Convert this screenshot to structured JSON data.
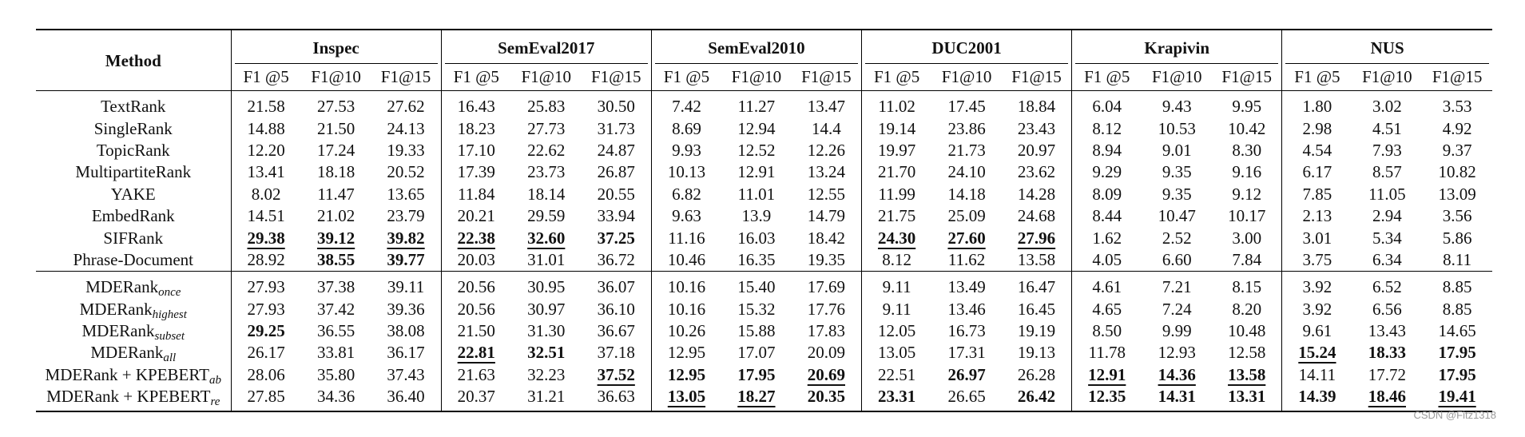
{
  "table": {
    "method_header": "Method",
    "datasets": [
      "Inspec",
      "SemEval2017",
      "SemEval2010",
      "DUC2001",
      "Krapivin",
      "NUS"
    ],
    "metrics": [
      "F1 @5",
      "F1@10",
      "F1@15"
    ],
    "sections": [
      [
        {
          "name": "TextRank",
          "sub": "",
          "cells": [
            {
              "v": "21.58"
            },
            {
              "v": "27.53"
            },
            {
              "v": "27.62"
            },
            {
              "v": "16.43"
            },
            {
              "v": "25.83"
            },
            {
              "v": "30.50"
            },
            {
              "v": "7.42"
            },
            {
              "v": "11.27"
            },
            {
              "v": "13.47"
            },
            {
              "v": "11.02"
            },
            {
              "v": "17.45"
            },
            {
              "v": "18.84"
            },
            {
              "v": "6.04"
            },
            {
              "v": "9.43"
            },
            {
              "v": "9.95"
            },
            {
              "v": "1.80"
            },
            {
              "v": "3.02"
            },
            {
              "v": "3.53"
            }
          ]
        },
        {
          "name": "SingleRank",
          "sub": "",
          "cells": [
            {
              "v": "14.88"
            },
            {
              "v": "21.50"
            },
            {
              "v": "24.13"
            },
            {
              "v": "18.23"
            },
            {
              "v": "27.73"
            },
            {
              "v": "31.73"
            },
            {
              "v": "8.69"
            },
            {
              "v": "12.94"
            },
            {
              "v": "14.4"
            },
            {
              "v": "19.14"
            },
            {
              "v": "23.86"
            },
            {
              "v": "23.43"
            },
            {
              "v": "8.12"
            },
            {
              "v": "10.53"
            },
            {
              "v": "10.42"
            },
            {
              "v": "2.98"
            },
            {
              "v": "4.51"
            },
            {
              "v": "4.92"
            }
          ]
        },
        {
          "name": "TopicRank",
          "sub": "",
          "cells": [
            {
              "v": "12.20"
            },
            {
              "v": "17.24"
            },
            {
              "v": "19.33"
            },
            {
              "v": "17.10"
            },
            {
              "v": "22.62"
            },
            {
              "v": "24.87"
            },
            {
              "v": "9.93"
            },
            {
              "v": "12.52"
            },
            {
              "v": "12.26"
            },
            {
              "v": "19.97"
            },
            {
              "v": "21.73"
            },
            {
              "v": "20.97"
            },
            {
              "v": "8.94"
            },
            {
              "v": "9.01"
            },
            {
              "v": "8.30"
            },
            {
              "v": "4.54"
            },
            {
              "v": "7.93"
            },
            {
              "v": "9.37"
            }
          ]
        },
        {
          "name": "MultipartiteRank",
          "sub": "",
          "cells": [
            {
              "v": "13.41"
            },
            {
              "v": "18.18"
            },
            {
              "v": "20.52"
            },
            {
              "v": "17.39"
            },
            {
              "v": "23.73"
            },
            {
              "v": "26.87"
            },
            {
              "v": "10.13"
            },
            {
              "v": "12.91"
            },
            {
              "v": "13.24"
            },
            {
              "v": "21.70"
            },
            {
              "v": "24.10"
            },
            {
              "v": "23.62"
            },
            {
              "v": "9.29"
            },
            {
              "v": "9.35"
            },
            {
              "v": "9.16"
            },
            {
              "v": "6.17"
            },
            {
              "v": "8.57"
            },
            {
              "v": "10.82"
            }
          ]
        },
        {
          "name": "YAKE",
          "sub": "",
          "cells": [
            {
              "v": "8.02"
            },
            {
              "v": "11.47"
            },
            {
              "v": "13.65"
            },
            {
              "v": "11.84"
            },
            {
              "v": "18.14"
            },
            {
              "v": "20.55"
            },
            {
              "v": "6.82"
            },
            {
              "v": "11.01"
            },
            {
              "v": "12.55"
            },
            {
              "v": "11.99"
            },
            {
              "v": "14.18"
            },
            {
              "v": "14.28"
            },
            {
              "v": "8.09"
            },
            {
              "v": "9.35"
            },
            {
              "v": "9.12"
            },
            {
              "v": "7.85"
            },
            {
              "v": "11.05"
            },
            {
              "v": "13.09"
            }
          ]
        },
        {
          "name": "EmbedRank",
          "sub": "",
          "cells": [
            {
              "v": "14.51"
            },
            {
              "v": "21.02"
            },
            {
              "v": "23.79"
            },
            {
              "v": "20.21"
            },
            {
              "v": "29.59"
            },
            {
              "v": "33.94"
            },
            {
              "v": "9.63"
            },
            {
              "v": "13.9"
            },
            {
              "v": "14.79"
            },
            {
              "v": "21.75"
            },
            {
              "v": "25.09"
            },
            {
              "v": "24.68"
            },
            {
              "v": "8.44"
            },
            {
              "v": "10.47"
            },
            {
              "v": "10.17"
            },
            {
              "v": "2.13"
            },
            {
              "v": "2.94"
            },
            {
              "v": "3.56"
            }
          ]
        },
        {
          "name": "SIFRank",
          "sub": "",
          "cells": [
            {
              "v": "29.38",
              "b": true,
              "u": true
            },
            {
              "v": "39.12",
              "b": true,
              "u": true
            },
            {
              "v": "39.82",
              "b": true,
              "u": true
            },
            {
              "v": "22.38",
              "b": true,
              "u": true
            },
            {
              "v": "32.60",
              "b": true,
              "u": true
            },
            {
              "v": "37.25",
              "b": true
            },
            {
              "v": "11.16"
            },
            {
              "v": "16.03"
            },
            {
              "v": "18.42"
            },
            {
              "v": "24.30",
              "b": true,
              "u": true
            },
            {
              "v": "27.60",
              "b": true,
              "u": true
            },
            {
              "v": "27.96",
              "b": true,
              "u": true
            },
            {
              "v": "1.62"
            },
            {
              "v": "2.52"
            },
            {
              "v": "3.00"
            },
            {
              "v": "3.01"
            },
            {
              "v": "5.34"
            },
            {
              "v": "5.86"
            }
          ]
        },
        {
          "name": "Phrase-Document",
          "sub": "",
          "cells": [
            {
              "v": "28.92"
            },
            {
              "v": "38.55",
              "b": true
            },
            {
              "v": "39.77",
              "b": true
            },
            {
              "v": "20.03"
            },
            {
              "v": "31.01"
            },
            {
              "v": "36.72"
            },
            {
              "v": "10.46"
            },
            {
              "v": "16.35"
            },
            {
              "v": "19.35"
            },
            {
              "v": "8.12"
            },
            {
              "v": "11.62"
            },
            {
              "v": "13.58"
            },
            {
              "v": "4.05"
            },
            {
              "v": "6.60"
            },
            {
              "v": "7.84"
            },
            {
              "v": "3.75"
            },
            {
              "v": "6.34"
            },
            {
              "v": "8.11"
            }
          ]
        }
      ],
      [
        {
          "name": "MDERank",
          "sub": "once",
          "cells": [
            {
              "v": "27.93"
            },
            {
              "v": "37.38"
            },
            {
              "v": "39.11"
            },
            {
              "v": "20.56"
            },
            {
              "v": "30.95"
            },
            {
              "v": "36.07"
            },
            {
              "v": "10.16"
            },
            {
              "v": "15.40"
            },
            {
              "v": "17.69"
            },
            {
              "v": "9.11"
            },
            {
              "v": "13.49"
            },
            {
              "v": "16.47"
            },
            {
              "v": "4.61"
            },
            {
              "v": "7.21"
            },
            {
              "v": "8.15"
            },
            {
              "v": "3.92"
            },
            {
              "v": "6.52"
            },
            {
              "v": "8.85"
            }
          ]
        },
        {
          "name": "MDERank",
          "sub": "highest",
          "cells": [
            {
              "v": "27.93"
            },
            {
              "v": "37.42"
            },
            {
              "v": "39.36"
            },
            {
              "v": "20.56"
            },
            {
              "v": "30.97"
            },
            {
              "v": "36.10"
            },
            {
              "v": "10.16"
            },
            {
              "v": "15.32"
            },
            {
              "v": "17.76"
            },
            {
              "v": "9.11"
            },
            {
              "v": "13.46"
            },
            {
              "v": "16.45"
            },
            {
              "v": "4.65"
            },
            {
              "v": "7.24"
            },
            {
              "v": "8.20"
            },
            {
              "v": "3.92"
            },
            {
              "v": "6.56"
            },
            {
              "v": "8.85"
            }
          ]
        },
        {
          "name": "MDERank",
          "sub": "subset",
          "cells": [
            {
              "v": "29.25",
              "b": true
            },
            {
              "v": "36.55"
            },
            {
              "v": "38.08"
            },
            {
              "v": "21.50"
            },
            {
              "v": "31.30"
            },
            {
              "v": "36.67"
            },
            {
              "v": "10.26"
            },
            {
              "v": "15.88"
            },
            {
              "v": "17.83"
            },
            {
              "v": "12.05"
            },
            {
              "v": "16.73"
            },
            {
              "v": "19.19"
            },
            {
              "v": "8.50"
            },
            {
              "v": "9.99"
            },
            {
              "v": "10.48"
            },
            {
              "v": "9.61"
            },
            {
              "v": "13.43"
            },
            {
              "v": "14.65"
            }
          ]
        },
        {
          "name": "MDERank",
          "sub": "all",
          "cells": [
            {
              "v": "26.17"
            },
            {
              "v": "33.81"
            },
            {
              "v": "36.17"
            },
            {
              "v": "22.81",
              "b": true,
              "u": true
            },
            {
              "v": "32.51",
              "b": true
            },
            {
              "v": "37.18"
            },
            {
              "v": "12.95"
            },
            {
              "v": "17.07"
            },
            {
              "v": "20.09"
            },
            {
              "v": "13.05"
            },
            {
              "v": "17.31"
            },
            {
              "v": "19.13"
            },
            {
              "v": "11.78"
            },
            {
              "v": "12.93"
            },
            {
              "v": "12.58"
            },
            {
              "v": "15.24",
              "b": true,
              "u": true
            },
            {
              "v": "18.33",
              "b": true
            },
            {
              "v": "17.95",
              "b": true
            }
          ]
        },
        {
          "name": "MDERank + KPEBERT",
          "sub": "ab",
          "cells": [
            {
              "v": "28.06"
            },
            {
              "v": "35.80"
            },
            {
              "v": "37.43"
            },
            {
              "v": "21.63"
            },
            {
              "v": "32.23"
            },
            {
              "v": "37.52",
              "b": true,
              "u": true
            },
            {
              "v": "12.95",
              "b": true
            },
            {
              "v": "17.95",
              "b": true
            },
            {
              "v": "20.69",
              "b": true,
              "u": true
            },
            {
              "v": "22.51"
            },
            {
              "v": "26.97",
              "b": true
            },
            {
              "v": "26.28"
            },
            {
              "v": "12.91",
              "b": true,
              "u": true
            },
            {
              "v": "14.36",
              "b": true,
              "u": true
            },
            {
              "v": "13.58",
              "b": true,
              "u": true
            },
            {
              "v": "14.11"
            },
            {
              "v": "17.72"
            },
            {
              "v": "17.95",
              "b": true
            }
          ]
        },
        {
          "name": "MDERank + KPEBERT",
          "sub": "re",
          "cells": [
            {
              "v": "27.85"
            },
            {
              "v": "34.36"
            },
            {
              "v": "36.40"
            },
            {
              "v": "20.37"
            },
            {
              "v": "31.21"
            },
            {
              "v": "36.63"
            },
            {
              "v": "13.05",
              "b": true,
              "u": true
            },
            {
              "v": "18.27",
              "b": true,
              "u": true
            },
            {
              "v": "20.35",
              "b": true
            },
            {
              "v": "23.31",
              "b": true
            },
            {
              "v": "26.65"
            },
            {
              "v": "26.42",
              "b": true
            },
            {
              "v": "12.35",
              "b": true
            },
            {
              "v": "14.31",
              "b": true
            },
            {
              "v": "13.31",
              "b": true
            },
            {
              "v": "14.39",
              "b": true
            },
            {
              "v": "18.46",
              "b": true,
              "u": true
            },
            {
              "v": "19.41",
              "b": true,
              "u": true
            }
          ]
        }
      ]
    ]
  },
  "watermark": "CSDN @Fitz1318"
}
